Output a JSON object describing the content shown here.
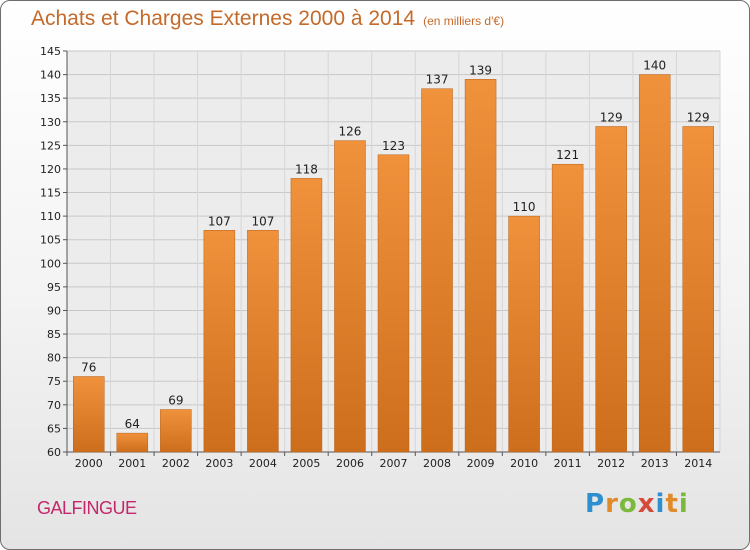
{
  "chart_data": {
    "type": "bar",
    "title": "Achats et Charges Externes 2000 à 2014",
    "subtitle": "(en milliers d'€)",
    "categories": [
      "2000",
      "2001",
      "2002",
      "2003",
      "2004",
      "2005",
      "2006",
      "2007",
      "2008",
      "2009",
      "2010",
      "2011",
      "2012",
      "2013",
      "2014"
    ],
    "values": [
      76,
      64,
      69,
      107,
      107,
      118,
      126,
      123,
      137,
      139,
      110,
      121,
      129,
      140,
      129
    ],
    "ylim": [
      60,
      145
    ],
    "yticks": [
      60,
      65,
      70,
      75,
      80,
      85,
      90,
      95,
      100,
      105,
      110,
      115,
      120,
      125,
      130,
      135,
      140,
      145
    ],
    "grid": true,
    "bar_color": "#f0923c",
    "bar_color_dark": "#cc6e1c"
  },
  "commune": "GALFINGUE",
  "logo": {
    "letters": [
      "P",
      "r",
      "o",
      "x",
      "i",
      "t",
      "i"
    ],
    "colors": [
      "#2e8fd0",
      "#e08a2a",
      "#7cb83c",
      "#d64a3a",
      "#2e8fd0",
      "#e08a2a",
      "#7cb83c"
    ]
  }
}
